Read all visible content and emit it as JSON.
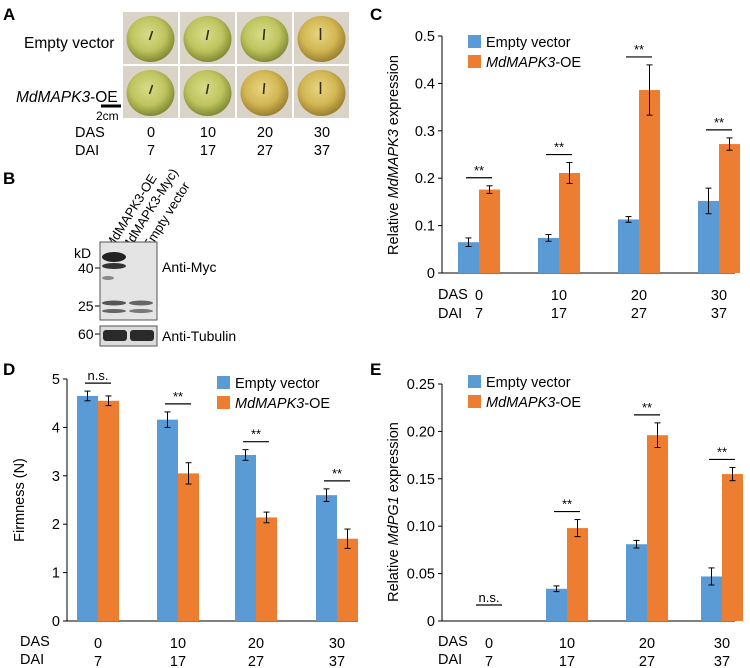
{
  "panels": {
    "A": {
      "letter": "A",
      "rows": [
        {
          "label_plain": "Empty vector"
        },
        {
          "label_italic": "MdMAPK3",
          "label_suffix": "-OE"
        }
      ],
      "scale_bar": "2cm",
      "das_label": "DAS",
      "dai_label": "DAI",
      "das": [
        "0",
        "10",
        "20",
        "30"
      ],
      "dai": [
        "7",
        "17",
        "27",
        "37"
      ]
    },
    "B": {
      "letter": "B",
      "lane1_line1": "MdMAPK3-OE",
      "lane1_line2": "(MdMAPK3-Myc)",
      "lane2": "Empty vector",
      "kd": "kD",
      "markers": [
        "40",
        "25",
        "60"
      ],
      "antibody_top": "Anti-Myc",
      "antibody_bottom": "Anti-Tubulin"
    }
  },
  "colors": {
    "empty": "#5b9bd5",
    "oe": "#ed7d31"
  },
  "chart_data": [
    {
      "panel": "C",
      "type": "bar",
      "ylabel_pre": "Relative ",
      "ylabel_italic": "MdMAPK3",
      "ylabel_post": " expression",
      "ylim": [
        0,
        0.5
      ],
      "yticks": [
        "0",
        "0.1",
        "0.2",
        "0.3",
        "0.4",
        "0.5"
      ],
      "legend_position": "top-left",
      "das_label": "DAS",
      "dai_label": "DAI",
      "categories": [
        "0",
        "10",
        "20",
        "30"
      ],
      "dai": [
        "7",
        "17",
        "27",
        "37"
      ],
      "series": [
        {
          "name": "Empty vector",
          "values": [
            0.065,
            0.074,
            0.113,
            0.152
          ],
          "errors": [
            0.009,
            0.007,
            0.006,
            0.027
          ]
        },
        {
          "name_italic": "MdMAPK3",
          "name_suffix": "-OE",
          "values": [
            0.176,
            0.211,
            0.386,
            0.272
          ],
          "errors": [
            0.008,
            0.022,
            0.053,
            0.013
          ]
        }
      ],
      "significance": [
        "**",
        "**",
        "**",
        "**"
      ]
    },
    {
      "panel": "D",
      "type": "bar",
      "ylabel": "Firmness (N)",
      "ylim": [
        0,
        5
      ],
      "yticks": [
        "0",
        "1",
        "2",
        "3",
        "4",
        "5"
      ],
      "legend_position": "top-right",
      "das_label": "DAS",
      "dai_label": "DAI",
      "categories": [
        "0",
        "10",
        "20",
        "30"
      ],
      "dai": [
        "7",
        "17",
        "27",
        "37"
      ],
      "series": [
        {
          "name": "Empty vector",
          "values": [
            4.65,
            4.16,
            3.43,
            2.6
          ],
          "errors": [
            0.1,
            0.16,
            0.11,
            0.13
          ]
        },
        {
          "name_italic": "MdMAPK3",
          "name_suffix": "-OE",
          "values": [
            4.55,
            3.05,
            2.14,
            1.7
          ],
          "errors": [
            0.1,
            0.22,
            0.11,
            0.2
          ]
        }
      ],
      "significance": [
        "n.s.",
        "**",
        "**",
        "**"
      ]
    },
    {
      "panel": "E",
      "type": "bar",
      "ylabel_pre": "Relative ",
      "ylabel_italic": "MdPG1",
      "ylabel_post": " expression",
      "ylim": [
        0,
        0.25
      ],
      "yticks": [
        "0",
        "0.05",
        "0.10",
        "0.15",
        "0.20",
        "0.25"
      ],
      "legend_position": "top-left",
      "das_label": "DAS",
      "dai_label": "DAI",
      "categories": [
        "0",
        "10",
        "20",
        "30"
      ],
      "dai": [
        "7",
        "17",
        "27",
        "37"
      ],
      "series": [
        {
          "name": "Empty vector",
          "values": [
            0,
            0.034,
            0.081,
            0.047
          ],
          "errors": [
            0,
            0.003,
            0.004,
            0.009
          ]
        },
        {
          "name_italic": "MdMAPK3",
          "name_suffix": "-OE",
          "values": [
            0,
            0.098,
            0.196,
            0.155
          ],
          "errors": [
            0,
            0.009,
            0.013,
            0.007
          ]
        }
      ],
      "significance": [
        "n.s.",
        "**",
        "**",
        "**"
      ]
    }
  ]
}
